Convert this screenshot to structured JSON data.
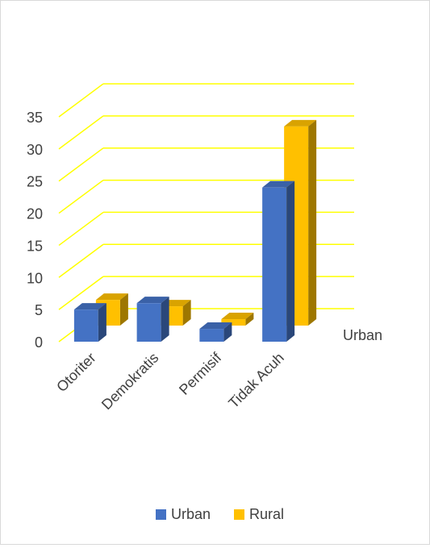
{
  "chart_data": {
    "type": "bar",
    "categories": [
      "Otoriter",
      "Demokratis",
      "Permisif",
      "Tidak Acuh"
    ],
    "series": [
      {
        "name": "Urban",
        "values": [
          5,
          6,
          2,
          24
        ],
        "color": "#4472C4"
      },
      {
        "name": "Rural",
        "values": [
          4,
          3,
          1,
          31
        ],
        "color": "#FFC000"
      }
    ],
    "depth_labels": [
      "Urban"
    ],
    "y_ticks": [
      "0",
      "5",
      "10",
      "15",
      "20",
      "25",
      "30",
      "35"
    ],
    "ylim": [
      0,
      35
    ],
    "grid": true,
    "gridline_color": "#FFFF00",
    "legend_position": "bottom",
    "three_d": true
  }
}
